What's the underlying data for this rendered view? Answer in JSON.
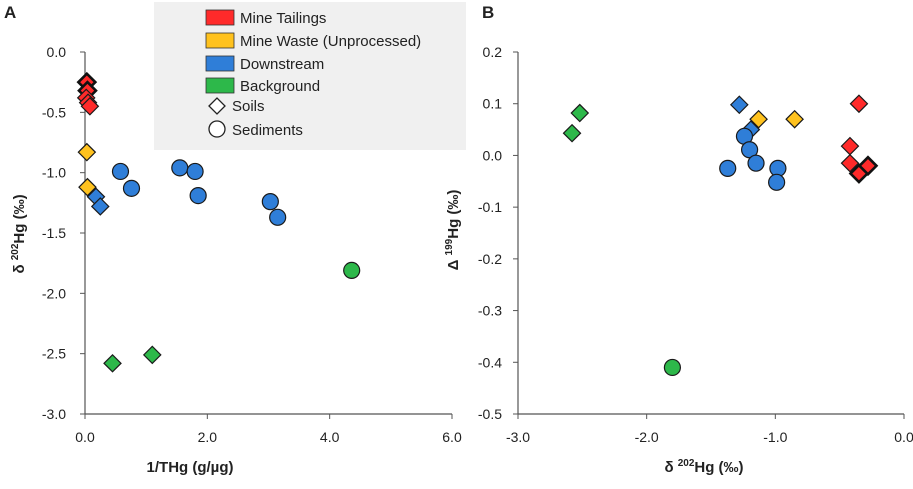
{
  "legend": {
    "items": [
      {
        "key": "tailings",
        "label": "Mine Tailings",
        "marker": "square",
        "color": "#ff2a2a"
      },
      {
        "key": "waste",
        "label": "Mine Waste (Unprocessed)",
        "marker": "square",
        "color": "#ffc21e"
      },
      {
        "key": "downstream",
        "label": "Downstream",
        "marker": "square",
        "color": "#2f7ed8"
      },
      {
        "key": "background",
        "label": "Background",
        "marker": "square",
        "color": "#2db84a"
      },
      {
        "key": "soils",
        "label": "Soils",
        "marker": "diamond",
        "color": "#ffffff"
      },
      {
        "key": "sediments",
        "label": "Sediments",
        "marker": "circle",
        "color": "#ffffff"
      }
    ]
  },
  "chart_data": [
    {
      "panel": "A",
      "type": "scatter",
      "xlabel": "1/THg (g/µg)",
      "ylabel_prefix": "δ ",
      "ylabel_sup": "202",
      "ylabel_suffix": "Hg  (‰)",
      "xlim": [
        0,
        6
      ],
      "ylim": [
        -3,
        0
      ],
      "xticks": [
        0,
        2,
        4,
        6
      ],
      "xtick_labels": [
        "0.0",
        "2.0",
        "4.0",
        "6.0"
      ],
      "yticks": [
        0,
        -0.5,
        -1,
        -1.5,
        -2,
        -2.5,
        -3
      ],
      "ytick_labels": [
        "0.0",
        "-0.5",
        "-1.0",
        "-1.5",
        "-2.0",
        "-2.5",
        "-3.0"
      ],
      "points": [
        {
          "group": "tailings",
          "shape": "diamond",
          "x": 0.03,
          "y": -0.25,
          "bold": true
        },
        {
          "group": "tailings",
          "shape": "diamond",
          "x": 0.04,
          "y": -0.32,
          "bold": true
        },
        {
          "group": "tailings",
          "shape": "diamond",
          "x": 0.02,
          "y": -0.38
        },
        {
          "group": "tailings",
          "shape": "diamond",
          "x": 0.05,
          "y": -0.42
        },
        {
          "group": "tailings",
          "shape": "diamond",
          "x": 0.08,
          "y": -0.45
        },
        {
          "group": "waste",
          "shape": "diamond",
          "x": 0.03,
          "y": -0.83
        },
        {
          "group": "waste",
          "shape": "diamond",
          "x": 0.04,
          "y": -1.12
        },
        {
          "group": "downstream",
          "shape": "diamond",
          "x": 0.18,
          "y": -1.2
        },
        {
          "group": "downstream",
          "shape": "diamond",
          "x": 0.25,
          "y": -1.28
        },
        {
          "group": "downstream",
          "shape": "circle",
          "x": 0.58,
          "y": -0.99
        },
        {
          "group": "downstream",
          "shape": "circle",
          "x": 0.76,
          "y": -1.13
        },
        {
          "group": "downstream",
          "shape": "circle",
          "x": 1.55,
          "y": -0.96
        },
        {
          "group": "downstream",
          "shape": "circle",
          "x": 1.8,
          "y": -0.99
        },
        {
          "group": "downstream",
          "shape": "circle",
          "x": 1.85,
          "y": -1.19
        },
        {
          "group": "downstream",
          "shape": "circle",
          "x": 3.03,
          "y": -1.24
        },
        {
          "group": "downstream",
          "shape": "circle",
          "x": 3.15,
          "y": -1.37
        },
        {
          "group": "background",
          "shape": "circle",
          "x": 4.36,
          "y": -1.81
        },
        {
          "group": "background",
          "shape": "diamond",
          "x": 0.45,
          "y": -2.58
        },
        {
          "group": "background",
          "shape": "diamond",
          "x": 1.1,
          "y": -2.51
        }
      ]
    },
    {
      "panel": "B",
      "type": "scatter",
      "xlabel_prefix": "δ ",
      "xlabel_sup": "202",
      "xlabel_suffix": "Hg (‰)",
      "ylabel_prefix": "Δ ",
      "ylabel_sup": "199",
      "ylabel_suffix": "Hg  (‰)",
      "xlim": [
        -3,
        0
      ],
      "ylim": [
        -0.5,
        0.2
      ],
      "xticks": [
        -3,
        -2,
        -1,
        0
      ],
      "xtick_labels": [
        "-3.0",
        "-2.0",
        "-1.0",
        "0.0"
      ],
      "yticks": [
        0.2,
        0.1,
        0,
        -0.1,
        -0.2,
        -0.3,
        -0.4,
        -0.5
      ],
      "ytick_labels": [
        "0.2",
        "0.1",
        "0.0",
        "-0.1",
        "-0.2",
        "-0.3",
        "-0.4",
        "-0.5"
      ],
      "points": [
        {
          "group": "background",
          "shape": "diamond",
          "x": -2.58,
          "y": 0.043
        },
        {
          "group": "background",
          "shape": "diamond",
          "x": -2.52,
          "y": 0.082
        },
        {
          "group": "background",
          "shape": "circle",
          "x": -1.8,
          "y": -0.41
        },
        {
          "group": "downstream",
          "shape": "diamond",
          "x": -1.28,
          "y": 0.098
        },
        {
          "group": "downstream",
          "shape": "diamond",
          "x": -1.19,
          "y": 0.05
        },
        {
          "group": "waste",
          "shape": "diamond",
          "x": -1.13,
          "y": 0.07
        },
        {
          "group": "waste",
          "shape": "diamond",
          "x": -0.85,
          "y": 0.07
        },
        {
          "group": "downstream",
          "shape": "circle",
          "x": -1.24,
          "y": 0.037
        },
        {
          "group": "downstream",
          "shape": "circle",
          "x": -1.2,
          "y": 0.011
        },
        {
          "group": "downstream",
          "shape": "circle",
          "x": -1.15,
          "y": -0.015
        },
        {
          "group": "downstream",
          "shape": "circle",
          "x": -1.37,
          "y": -0.025
        },
        {
          "group": "downstream",
          "shape": "circle",
          "x": -0.98,
          "y": -0.025
        },
        {
          "group": "downstream",
          "shape": "circle",
          "x": -0.99,
          "y": -0.052
        },
        {
          "group": "tailings",
          "shape": "diamond",
          "x": -0.35,
          "y": 0.1
        },
        {
          "group": "tailings",
          "shape": "diamond",
          "x": -0.42,
          "y": 0.018
        },
        {
          "group": "tailings",
          "shape": "diamond",
          "x": -0.42,
          "y": -0.015
        },
        {
          "group": "tailings",
          "shape": "diamond",
          "x": -0.35,
          "y": -0.035,
          "bold": true
        },
        {
          "group": "tailings",
          "shape": "diamond",
          "x": -0.28,
          "y": -0.02,
          "bold": true
        }
      ]
    }
  ]
}
